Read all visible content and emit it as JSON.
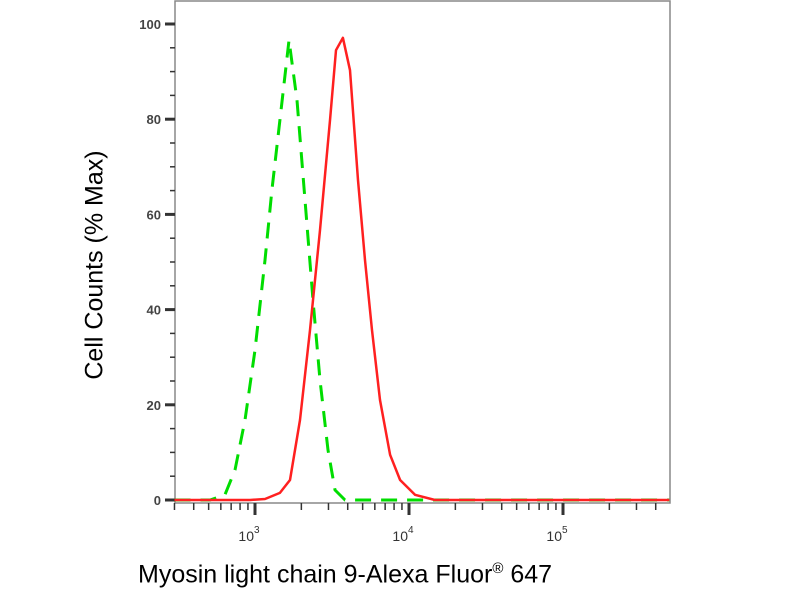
{
  "chart_data": {
    "type": "line",
    "title": "",
    "xlabel": "Myosin light chain 9-Alexa Fluor",
    "xlabel_mark": "®",
    "xlabel_suffix": " 647",
    "ylabel": "Cell Counts (% Max)",
    "x_scale": "log",
    "xlim": [
      300,
      490000
    ],
    "ylim": [
      0,
      100
    ],
    "x_ticks": [
      {
        "base": "10",
        "exp": "3",
        "value": 1000
      },
      {
        "base": "10",
        "exp": "4",
        "value": 10000
      },
      {
        "base": "10",
        "exp": "5",
        "value": 100000
      }
    ],
    "y_ticks": [
      "0",
      "20",
      "40",
      "60",
      "80",
      "100"
    ],
    "grid": false,
    "legend": "none",
    "series": [
      {
        "color": "#00dd00",
        "style": "dashed",
        "x": [
          300,
          511,
          638,
          741,
          861,
          1000,
          1161,
          1288,
          1452,
          1662,
          1874,
          2112,
          2381,
          2642,
          2979,
          3306,
          3841,
          490000
        ],
        "y": [
          0,
          0,
          1.1,
          6.3,
          16.8,
          31.5,
          50.4,
          65.1,
          79.8,
          96.6,
          84.0,
          63.0,
          42.0,
          25.2,
          10.5,
          2.1,
          0,
          0
        ]
      },
      {
        "color": "#ff2020",
        "style": "solid",
        "x": [
          300,
          929,
          1161,
          1452,
          1687,
          1959,
          2275,
          2642,
          3069,
          3357,
          3724,
          4140,
          4667,
          5176,
          5754,
          6486,
          7534,
          8750,
          10940,
          14750,
          490000
        ],
        "y": [
          0,
          0,
          0.2,
          1.5,
          4.2,
          16.8,
          35.7,
          56.7,
          79.8,
          94.5,
          97.1,
          90.3,
          67.2,
          50.4,
          35.7,
          21.0,
          9.5,
          4.2,
          1.1,
          0,
          0
        ]
      }
    ]
  }
}
